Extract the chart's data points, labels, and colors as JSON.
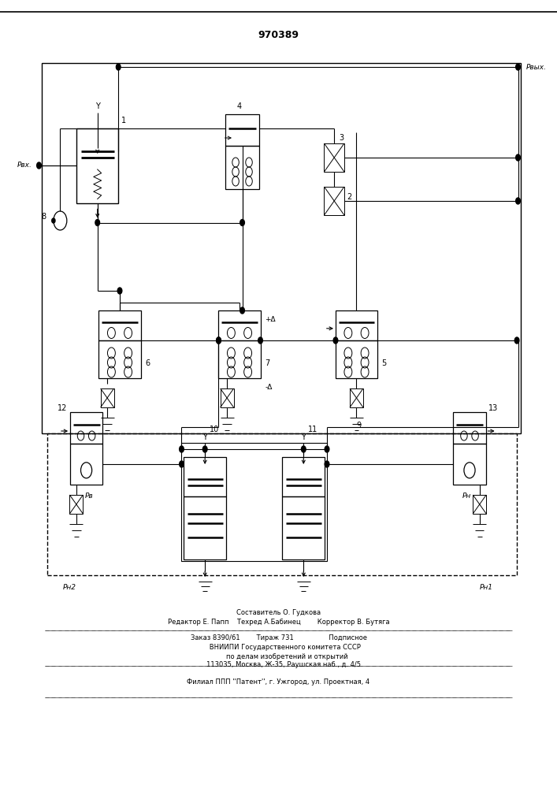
{
  "patent_number": "970389",
  "bg_color": "#ffffff",
  "lc": "#000000",
  "footer": {
    "f1": "Составитель О. Гудкова",
    "f2": "Редактор Е. Папп    Техред А.Бабинец        Корректор В. Бутяга",
    "f3": "Заказ 8390/61        Тираж 731                 Подписное",
    "f4": "      ВНИИПИ Государственного комитета СССР",
    "f5": "        по делам изобретений и открытий",
    "f6": "     113035, Москва, Ж-35, Раушская наб., д. 4/5",
    "f7": "Филиал ППП ''Патент'', г. Ужгород, ул. Проектная, 4"
  }
}
